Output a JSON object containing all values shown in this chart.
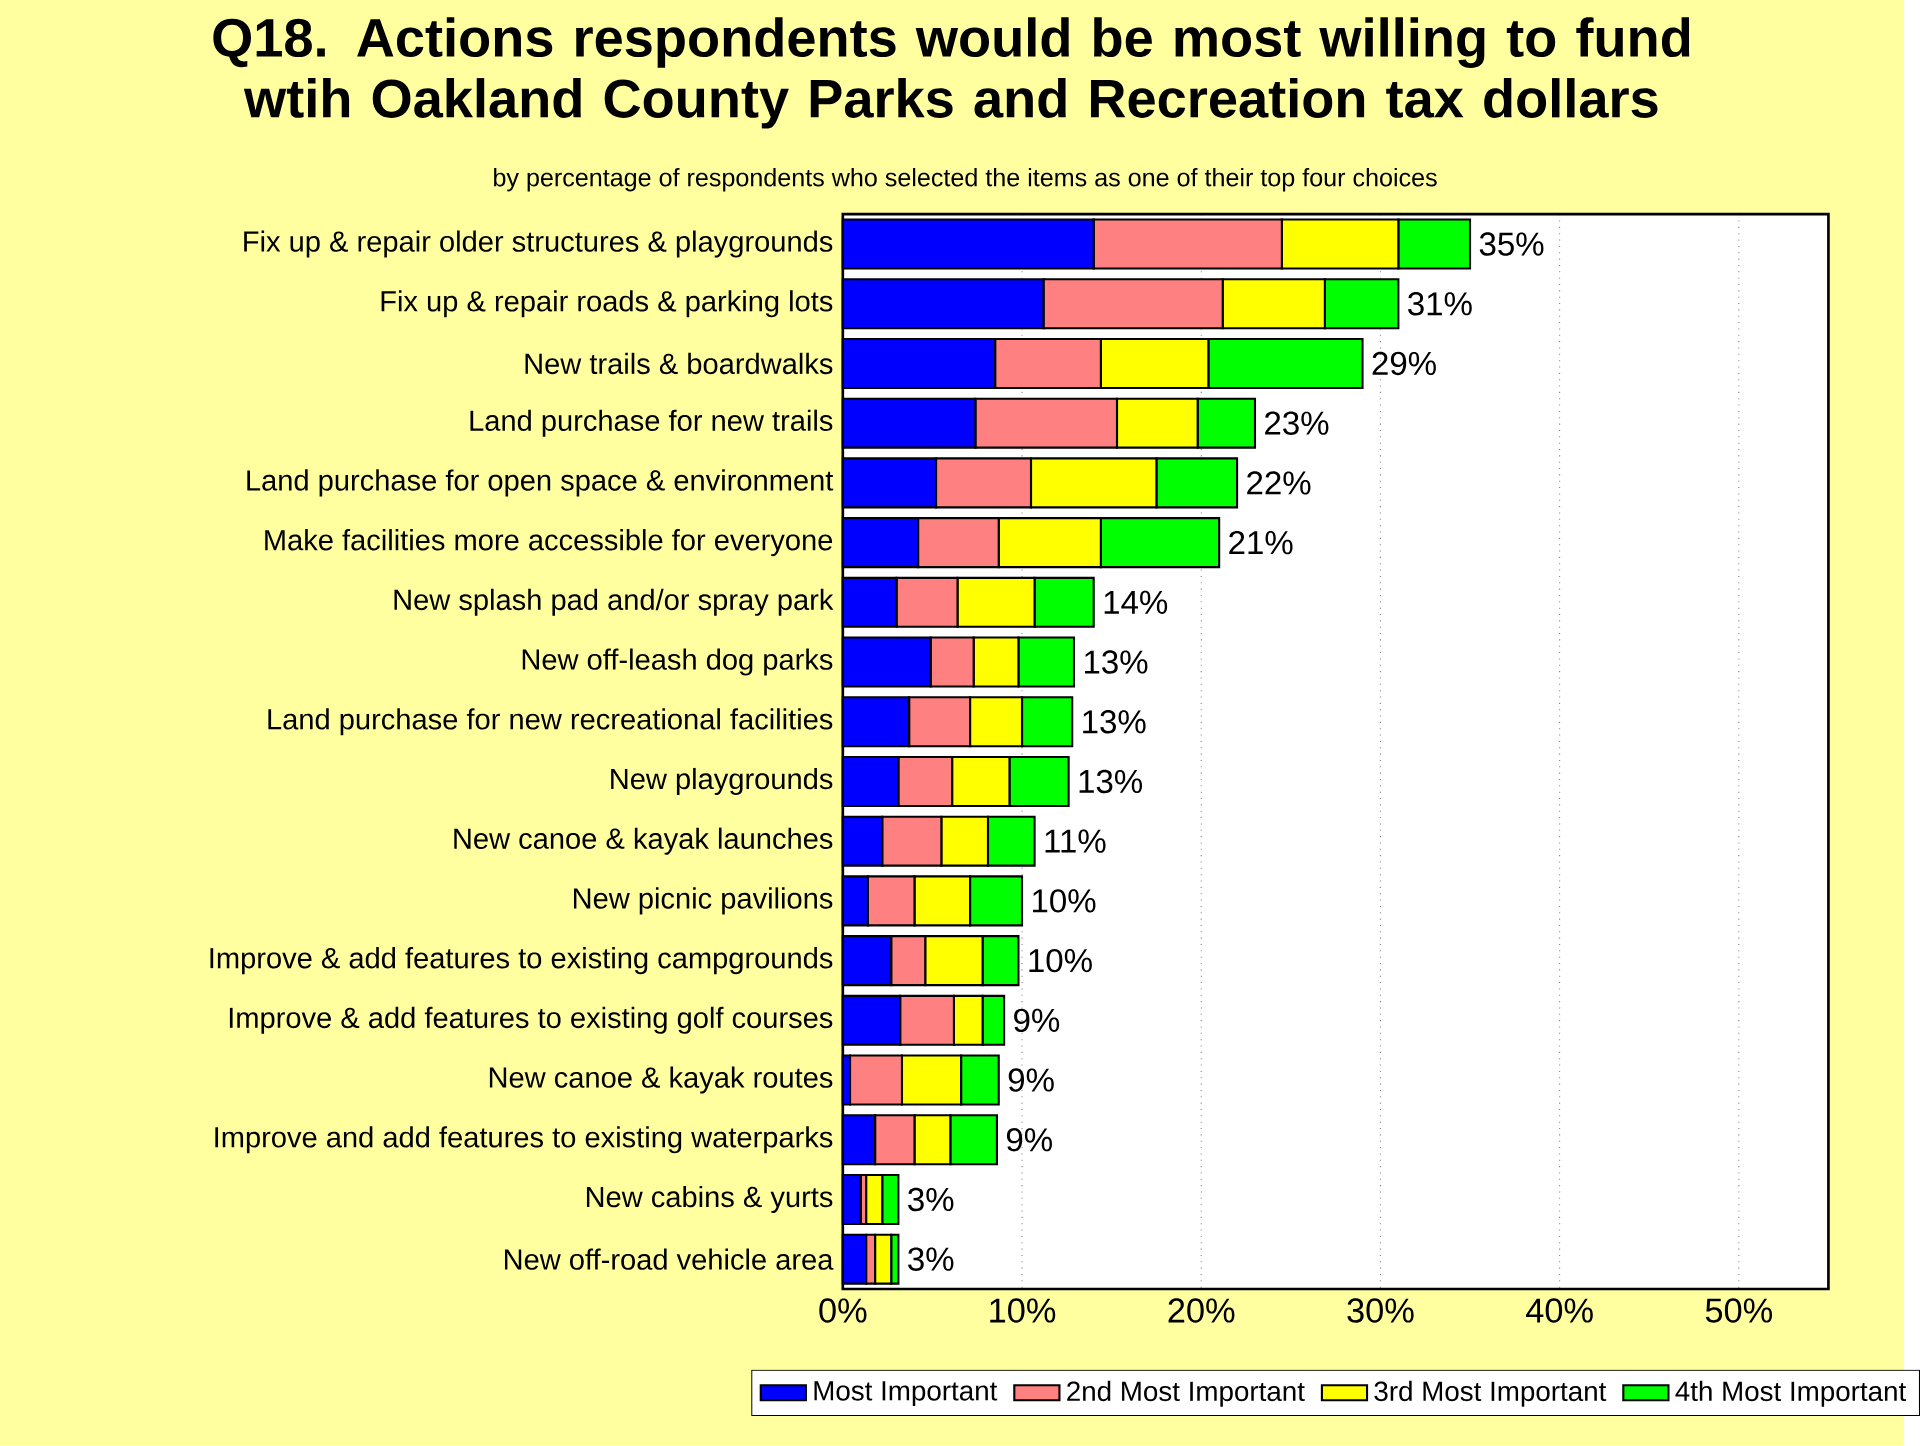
{
  "chart_data": {
    "type": "bar",
    "orientation": "horizontal",
    "stacked": true,
    "title": "Q18. Actions respondents would be most willing to fund wtih Oakland County Parks and Recreation tax dollars",
    "subtitle": "by percentage of respondents who selected the items as one of their top four choices",
    "categories": [
      "Fix up & repair older structures & playgrounds",
      "Fix up & repair roads & parking lots",
      "New trails & boardwalks",
      "Land purchase for new trails",
      "Land purchase for open space & environment",
      "Make facilities more accessible for everyone",
      "New splash pad and/or spray park",
      "New off-leash dog parks",
      "Land purchase for new recreational facilities",
      "New playgrounds",
      "New canoe & kayak launches",
      "New picnic pavilions",
      "Improve & add features to existing campgrounds",
      "Improve & add features to existing golf courses",
      "New canoe & kayak routes",
      "Improve and add features to existing waterparks",
      "New cabins & yurts",
      "New off-road vehicle area"
    ],
    "series": [
      {
        "name": "Most Important",
        "color": "#0000ff",
        "values": [
          14,
          11.2,
          8.5,
          7.4,
          5.2,
          4.2,
          3,
          4.9,
          3.7,
          3.1,
          2.2,
          1.4,
          2.7,
          3.2,
          0.4,
          1.8,
          1,
          1.3
        ]
      },
      {
        "name": "2nd Most Important",
        "color": "#ff8080",
        "values": [
          10.5,
          10,
          5.9,
          7.9,
          5.3,
          4.5,
          3.4,
          2.4,
          3.4,
          3,
          3.3,
          2.6,
          1.9,
          3,
          2.9,
          2.2,
          0.3,
          0.5
        ]
      },
      {
        "name": "3rd Most Important",
        "color": "#ffff00",
        "values": [
          6.5,
          5.7,
          6,
          4.5,
          7,
          5.7,
          4.3,
          2.5,
          2.9,
          3.2,
          2.6,
          3.1,
          3.2,
          1.6,
          3.3,
          2,
          0.9,
          0.9
        ]
      },
      {
        "name": "4th Most Important",
        "color": "#00ff00",
        "values": [
          4,
          4.1,
          8.6,
          3.2,
          4.5,
          6.6,
          3.3,
          3.1,
          2.8,
          3.3,
          2.6,
          2.9,
          2,
          1.2,
          2.1,
          2.6,
          0.9,
          0.4
        ]
      }
    ],
    "totals": [
      "35%",
      "31%",
      "29%",
      "23%",
      "22%",
      "21%",
      "14%",
      "13%",
      "13%",
      "13%",
      "11%",
      "10%",
      "10%",
      "9%",
      "9%",
      "9%",
      "3%",
      "3%"
    ],
    "xlim": [
      0,
      55
    ],
    "xticks": [
      {
        "value": 0,
        "label": "0%"
      },
      {
        "value": 10,
        "label": "10%"
      },
      {
        "value": 20,
        "label": "20%"
      },
      {
        "value": 30,
        "label": "30%"
      },
      {
        "value": 40,
        "label": "40%"
      },
      {
        "value": 50,
        "label": "50%"
      }
    ],
    "grid": "x",
    "legend": "bottom"
  }
}
